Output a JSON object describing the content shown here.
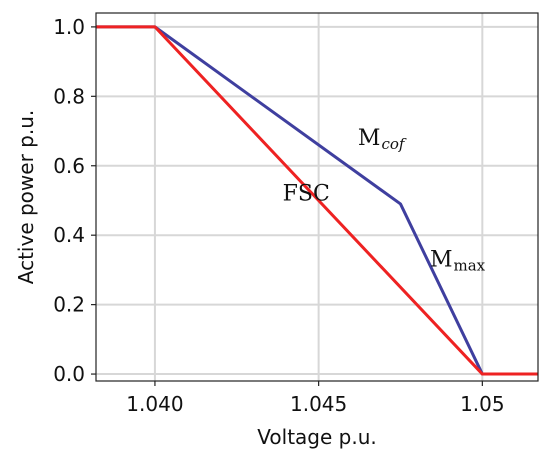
{
  "chart_data": {
    "type": "line",
    "title": "",
    "xlabel": "Voltage p.u.",
    "ylabel": "Active power p.u.",
    "xlim": [
      1.0382,
      1.0517
    ],
    "ylim": [
      -0.02,
      1.04
    ],
    "xticks": [
      1.04,
      1.045,
      1.05
    ],
    "xtick_labels": [
      "1.040",
      "1.045",
      "1.05"
    ],
    "yticks": [
      0.0,
      0.2,
      0.4,
      0.6,
      0.8,
      1.0
    ],
    "ytick_labels": [
      "0.0",
      "0.2",
      "0.4",
      "0.6",
      "0.8",
      "1.0"
    ],
    "grid": true,
    "legend": null,
    "series": [
      {
        "color": "#3f3f9f",
        "x": [
          1.0382,
          1.04,
          1.0475,
          1.05,
          1.0517
        ],
        "y": [
          1.0,
          1.0,
          0.49,
          0.0,
          0.0
        ]
      },
      {
        "color": "#ee2222",
        "x": [
          1.0382,
          1.04,
          1.05,
          1.0517
        ],
        "y": [
          1.0,
          1.0,
          0.0,
          0.0
        ]
      }
    ],
    "annotations": [
      {
        "main": "M",
        "sub": "cof",
        "sub_style": "italic",
        "x": 1.0462,
        "y": 0.66
      },
      {
        "main": "FSC",
        "sub": "",
        "sub_style": "normal",
        "x": 1.0439,
        "y": 0.5
      },
      {
        "main": "M",
        "sub": "max",
        "sub_style": "normal",
        "x": 1.0484,
        "y": 0.31
      }
    ]
  }
}
